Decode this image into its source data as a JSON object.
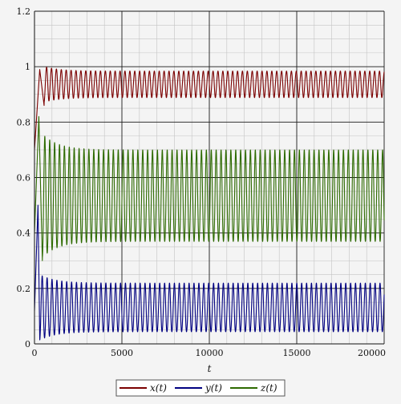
{
  "chart_data": {
    "type": "line",
    "title": "",
    "xlabel": "t",
    "ylabel": "",
    "xlim": [
      0,
      20000
    ],
    "ylim": [
      0,
      1.2
    ],
    "x_ticks": [
      "0",
      "5000",
      "10000",
      "15000",
      "20000"
    ],
    "y_ticks": [
      "0",
      "0.2",
      "0.4",
      "0.6",
      "0.8",
      "1",
      "1.2"
    ],
    "grid": true,
    "legend_position": "bottom-center",
    "oscillation_period": 280,
    "series": [
      {
        "name": "x(t)",
        "color": "#7b0000",
        "initial_value": 0.7,
        "transient_peak": {
          "t": 300,
          "value": 0.99
        },
        "transient_min": {
          "t": 550,
          "value": 0.86
        },
        "steady_min": 0.89,
        "steady_max": 0.985
      },
      {
        "name": "y(t)",
        "color": "#000080",
        "initial_value": 0.12,
        "transient_peak": {
          "t": 200,
          "value": 0.5
        },
        "transient_min": {
          "t": 300,
          "value": 0.02
        },
        "steady_min": 0.04,
        "steady_max": 0.215
      },
      {
        "name": "z(t)",
        "color": "#2d6a00",
        "initial_value": 0.4,
        "transient_peak": {
          "t": 250,
          "value": 0.82
        },
        "transient_min": {
          "t": 450,
          "value": 0.3
        },
        "steady_min": 0.36,
        "steady_max": 0.69
      }
    ]
  }
}
